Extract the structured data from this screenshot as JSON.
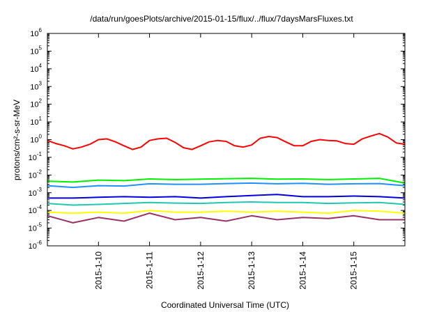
{
  "chart_data": {
    "type": "line",
    "title": "/data/run/goesPlots/archive/2015-01-15/flux/../flux/7daysMarsFluxes.txt",
    "xlabel": "Coordinated Universal Time (UTC)",
    "ylabel": "protons/cm²-s-sr-MeV",
    "y_scale": "log",
    "ylim": [
      1e-06,
      1000000.0
    ],
    "y_ticks": [
      {
        "base": "10",
        "exp": "-6",
        "value": 1e-06
      },
      {
        "base": "10",
        "exp": "-5",
        "value": 1e-05
      },
      {
        "base": "10",
        "exp": "-4",
        "value": 0.0001
      },
      {
        "base": "10",
        "exp": "-3",
        "value": 0.001
      },
      {
        "base": "10",
        "exp": "-2",
        "value": 0.01
      },
      {
        "base": "10",
        "exp": "-1",
        "value": 0.1
      },
      {
        "base": "10",
        "exp": "0",
        "value": 1
      },
      {
        "base": "10",
        "exp": "1",
        "value": 10
      },
      {
        "base": "10",
        "exp": "2",
        "value": 100
      },
      {
        "base": "10",
        "exp": "3",
        "value": 1000
      },
      {
        "base": "10",
        "exp": "4",
        "value": 10000
      },
      {
        "base": "10",
        "exp": "5",
        "value": 100000
      },
      {
        "base": "10",
        "exp": "6",
        "value": 1000000
      }
    ],
    "xlim": [
      "2015-01-09 00:00",
      "2015-01-16 00:00"
    ],
    "x_ticks": [
      {
        "label": "2015-1-10",
        "value": "2015-01-10"
      },
      {
        "label": "2015-1-11",
        "value": "2015-01-11"
      },
      {
        "label": "2015-1-12",
        "value": "2015-01-12"
      },
      {
        "label": "2015-1-13",
        "value": "2015-01-13"
      },
      {
        "label": "2015-1-14",
        "value": "2015-01-14"
      },
      {
        "label": "2015-1-15",
        "value": "2015-01-15"
      }
    ],
    "grid": false,
    "legend": "none",
    "series": [
      {
        "color": "#ff0000",
        "x": [
          "2015-01-09 00:00",
          "2015-01-09 04:00",
          "2015-01-09 08:00",
          "2015-01-09 12:00",
          "2015-01-09 16:00",
          "2015-01-09 20:00",
          "2015-01-10 00:00",
          "2015-01-10 04:00",
          "2015-01-10 08:00",
          "2015-01-10 12:00",
          "2015-01-10 16:00",
          "2015-01-10 20:00",
          "2015-01-11 00:00",
          "2015-01-11 04:00",
          "2015-01-11 08:00",
          "2015-01-11 12:00",
          "2015-01-11 16:00",
          "2015-01-11 20:00",
          "2015-01-12 00:00",
          "2015-01-12 04:00",
          "2015-01-12 08:00",
          "2015-01-12 12:00",
          "2015-01-12 16:00",
          "2015-01-12 20:00",
          "2015-01-13 00:00",
          "2015-01-13 04:00",
          "2015-01-13 08:00",
          "2015-01-13 12:00",
          "2015-01-13 16:00",
          "2015-01-13 20:00",
          "2015-01-14 00:00",
          "2015-01-14 04:00",
          "2015-01-14 08:00",
          "2015-01-14 12:00",
          "2015-01-14 16:00",
          "2015-01-14 20:00",
          "2015-01-15 00:00",
          "2015-01-15 04:00",
          "2015-01-15 08:00",
          "2015-01-15 12:00",
          "2015-01-15 16:00",
          "2015-01-15 20:00",
          "2015-01-16 00:00"
        ],
        "values": [
          0.9,
          0.6,
          0.45,
          0.3,
          0.38,
          0.55,
          1.0,
          1.1,
          0.75,
          0.45,
          0.28,
          0.38,
          0.9,
          1.1,
          1.2,
          0.7,
          0.35,
          0.28,
          0.45,
          0.75,
          0.9,
          0.8,
          0.45,
          0.38,
          0.5,
          1.2,
          1.5,
          1.3,
          0.75,
          0.45,
          0.45,
          0.8,
          1.0,
          0.9,
          0.85,
          0.6,
          0.55,
          1.1,
          1.6,
          2.2,
          1.4,
          0.65,
          0.55
        ]
      },
      {
        "color": "#00ee00",
        "x": [
          "2015-01-09 00:00",
          "2015-01-09 12:00",
          "2015-01-10 00:00",
          "2015-01-10 12:00",
          "2015-01-11 00:00",
          "2015-01-11 12:00",
          "2015-01-12 00:00",
          "2015-01-12 12:00",
          "2015-01-13 00:00",
          "2015-01-13 12:00",
          "2015-01-14 00:00",
          "2015-01-14 12:00",
          "2015-01-15 00:00",
          "2015-01-15 12:00",
          "2015-01-16 00:00"
        ],
        "values": [
          0.0045,
          0.004,
          0.0052,
          0.0048,
          0.006,
          0.0055,
          0.0058,
          0.0062,
          0.0065,
          0.0058,
          0.006,
          0.0055,
          0.006,
          0.0065,
          0.0035
        ]
      },
      {
        "color": "#1e90ff",
        "x": [
          "2015-01-09 00:00",
          "2015-01-09 12:00",
          "2015-01-10 00:00",
          "2015-01-10 12:00",
          "2015-01-11 00:00",
          "2015-01-11 12:00",
          "2015-01-12 00:00",
          "2015-01-12 12:00",
          "2015-01-13 00:00",
          "2015-01-13 12:00",
          "2015-01-14 00:00",
          "2015-01-14 12:00",
          "2015-01-15 00:00",
          "2015-01-15 12:00",
          "2015-01-16 00:00"
        ],
        "values": [
          0.0025,
          0.002,
          0.0025,
          0.0024,
          0.0032,
          0.003,
          0.003,
          0.0033,
          0.0035,
          0.0032,
          0.0034,
          0.003,
          0.0032,
          0.0033,
          0.0025
        ]
      },
      {
        "color": "#0000dd",
        "x": [
          "2015-01-09 00:00",
          "2015-01-09 12:00",
          "2015-01-10 00:00",
          "2015-01-10 12:00",
          "2015-01-11 00:00",
          "2015-01-11 12:00",
          "2015-01-12 00:00",
          "2015-01-12 12:00",
          "2015-01-13 00:00",
          "2015-01-13 12:00",
          "2015-01-14 00:00",
          "2015-01-14 12:00",
          "2015-01-15 00:00",
          "2015-01-15 12:00",
          "2015-01-16 00:00"
        ],
        "values": [
          0.0005,
          0.0005,
          0.00055,
          0.0006,
          0.00055,
          0.0006,
          0.0005,
          0.0006,
          0.0007,
          0.0008,
          0.0006,
          0.0006,
          0.00065,
          0.0006,
          0.0005
        ]
      },
      {
        "color": "#20c8b4",
        "x": [
          "2015-01-09 00:00",
          "2015-01-09 12:00",
          "2015-01-10 00:00",
          "2015-01-10 12:00",
          "2015-01-11 00:00",
          "2015-01-11 12:00",
          "2015-01-12 00:00",
          "2015-01-12 12:00",
          "2015-01-13 00:00",
          "2015-01-13 12:00",
          "2015-01-14 00:00",
          "2015-01-14 12:00",
          "2015-01-15 00:00",
          "2015-01-15 12:00",
          "2015-01-16 00:00"
        ],
        "values": [
          0.00025,
          0.0002,
          0.00022,
          0.00025,
          0.00028,
          0.00026,
          0.00025,
          0.00028,
          0.0003,
          0.00028,
          0.00028,
          0.00025,
          0.00027,
          0.00028,
          0.00022
        ]
      },
      {
        "color": "#ffff00",
        "x": [
          "2015-01-09 00:00",
          "2015-01-09 12:00",
          "2015-01-10 00:00",
          "2015-01-10 12:00",
          "2015-01-11 00:00",
          "2015-01-11 12:00",
          "2015-01-12 00:00",
          "2015-01-12 12:00",
          "2015-01-13 00:00",
          "2015-01-13 12:00",
          "2015-01-14 00:00",
          "2015-01-14 12:00",
          "2015-01-15 00:00",
          "2015-01-15 12:00",
          "2015-01-16 00:00"
        ],
        "values": [
          8e-05,
          7e-05,
          8e-05,
          7e-05,
          0.0001,
          8e-05,
          8e-05,
          9e-05,
          8e-05,
          9e-05,
          8e-05,
          7e-05,
          0.0001,
          9e-05,
          7e-05
        ]
      },
      {
        "color": "#993366",
        "x": [
          "2015-01-09 00:00",
          "2015-01-09 12:00",
          "2015-01-10 00:00",
          "2015-01-10 12:00",
          "2015-01-11 00:00",
          "2015-01-11 12:00",
          "2015-01-12 00:00",
          "2015-01-12 12:00",
          "2015-01-13 00:00",
          "2015-01-13 12:00",
          "2015-01-14 00:00",
          "2015-01-14 12:00",
          "2015-01-15 00:00",
          "2015-01-15 12:00",
          "2015-01-16 00:00"
        ],
        "values": [
          5e-05,
          2e-05,
          4e-05,
          2.5e-05,
          7e-05,
          3e-05,
          4e-05,
          2.5e-05,
          5e-05,
          3e-05,
          4e-05,
          3.5e-05,
          5e-05,
          3e-05,
          3e-05
        ]
      }
    ]
  }
}
